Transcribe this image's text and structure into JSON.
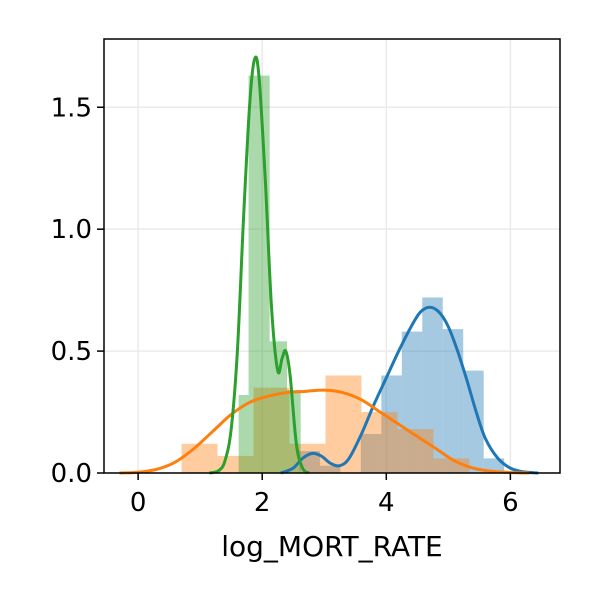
{
  "chart_data": {
    "type": "histogram-kde",
    "title": "",
    "xlabel": "log_MORT_RATE",
    "ylabel": "",
    "xlim": [
      -0.55,
      6.8
    ],
    "ylim": [
      0,
      1.78
    ],
    "x_ticks": [
      0,
      2,
      4,
      6
    ],
    "y_ticks": [
      0.0,
      0.5,
      1.0,
      1.5
    ],
    "x_tick_labels": [
      "0",
      "2",
      "4",
      "6"
    ],
    "y_tick_labels": [
      "0.0",
      "0.5",
      "1.0",
      "1.5"
    ],
    "grid": true,
    "legend": "none",
    "series": [
      {
        "color": "#1f77b4",
        "hist_alpha": 0.4,
        "bins": [
          {
            "x0": 2.6,
            "x1": 2.93,
            "y": 0.09
          },
          {
            "x0": 2.93,
            "x1": 3.26,
            "y": 0.03
          },
          {
            "x0": 3.26,
            "x1": 3.59,
            "y": 0.0
          },
          {
            "x0": 3.59,
            "x1": 3.92,
            "y": 0.16
          },
          {
            "x0": 3.92,
            "x1": 4.25,
            "y": 0.4
          },
          {
            "x0": 4.25,
            "x1": 4.58,
            "y": 0.58
          },
          {
            "x0": 4.58,
            "x1": 4.91,
            "y": 0.72
          },
          {
            "x0": 4.91,
            "x1": 5.24,
            "y": 0.59
          },
          {
            "x0": 5.24,
            "x1": 5.57,
            "y": 0.42
          },
          {
            "x0": 5.57,
            "x1": 5.9,
            "y": 0.06
          }
        ],
        "kde": [
          [
            2.3,
            0.0
          ],
          [
            2.5,
            0.02
          ],
          [
            2.65,
            0.06
          ],
          [
            2.8,
            0.08
          ],
          [
            2.95,
            0.07
          ],
          [
            3.1,
            0.04
          ],
          [
            3.25,
            0.03
          ],
          [
            3.4,
            0.06
          ],
          [
            3.6,
            0.16
          ],
          [
            3.8,
            0.28
          ],
          [
            4.0,
            0.39
          ],
          [
            4.2,
            0.5
          ],
          [
            4.4,
            0.6
          ],
          [
            4.55,
            0.66
          ],
          [
            4.7,
            0.68
          ],
          [
            4.85,
            0.66
          ],
          [
            5.0,
            0.6
          ],
          [
            5.15,
            0.5
          ],
          [
            5.3,
            0.38
          ],
          [
            5.45,
            0.25
          ],
          [
            5.6,
            0.14
          ],
          [
            5.8,
            0.06
          ],
          [
            6.0,
            0.02
          ],
          [
            6.2,
            0.005
          ],
          [
            6.45,
            0.0
          ]
        ]
      },
      {
        "color": "#ff7f0e",
        "hist_alpha": 0.4,
        "bins": [
          {
            "x0": 0.7,
            "x1": 1.28,
            "y": 0.12
          },
          {
            "x0": 1.28,
            "x1": 1.86,
            "y": 0.07
          },
          {
            "x0": 1.86,
            "x1": 2.44,
            "y": 0.35
          },
          {
            "x0": 2.44,
            "x1": 3.02,
            "y": 0.12
          },
          {
            "x0": 3.02,
            "x1": 3.6,
            "y": 0.4
          },
          {
            "x0": 3.6,
            "x1": 4.18,
            "y": 0.25
          },
          {
            "x0": 4.18,
            "x1": 4.76,
            "y": 0.18
          },
          {
            "x0": 4.76,
            "x1": 5.34,
            "y": 0.06
          }
        ],
        "kde": [
          [
            -0.3,
            0.0
          ],
          [
            0.0,
            0.003
          ],
          [
            0.3,
            0.015
          ],
          [
            0.6,
            0.045
          ],
          [
            0.9,
            0.1
          ],
          [
            1.2,
            0.17
          ],
          [
            1.5,
            0.24
          ],
          [
            1.8,
            0.29
          ],
          [
            2.1,
            0.315
          ],
          [
            2.4,
            0.33
          ],
          [
            2.7,
            0.335
          ],
          [
            3.0,
            0.34
          ],
          [
            3.3,
            0.33
          ],
          [
            3.6,
            0.3
          ],
          [
            3.9,
            0.25
          ],
          [
            4.2,
            0.2
          ],
          [
            4.5,
            0.15
          ],
          [
            4.8,
            0.1
          ],
          [
            5.1,
            0.05
          ],
          [
            5.4,
            0.02
          ],
          [
            5.7,
            0.007
          ],
          [
            6.0,
            0.002
          ],
          [
            6.3,
            0.0
          ]
        ]
      },
      {
        "color": "#2ca02c",
        "hist_alpha": 0.4,
        "bins": [
          {
            "x0": 1.62,
            "x1": 1.78,
            "y": 0.32
          },
          {
            "x0": 1.78,
            "x1": 2.12,
            "y": 1.63
          },
          {
            "x0": 2.12,
            "x1": 2.4,
            "y": 0.54
          },
          {
            "x0": 2.4,
            "x1": 2.62,
            "y": 0.34
          }
        ],
        "kde": [
          [
            1.15,
            0.0
          ],
          [
            1.3,
            0.01
          ],
          [
            1.4,
            0.05
          ],
          [
            1.5,
            0.18
          ],
          [
            1.6,
            0.5
          ],
          [
            1.7,
            1.05
          ],
          [
            1.8,
            1.52
          ],
          [
            1.88,
            1.7
          ],
          [
            1.95,
            1.62
          ],
          [
            2.05,
            1.2
          ],
          [
            2.15,
            0.68
          ],
          [
            2.25,
            0.42
          ],
          [
            2.32,
            0.47
          ],
          [
            2.38,
            0.5
          ],
          [
            2.45,
            0.4
          ],
          [
            2.55,
            0.12
          ],
          [
            2.65,
            0.02
          ],
          [
            2.75,
            0.0
          ]
        ]
      }
    ]
  }
}
